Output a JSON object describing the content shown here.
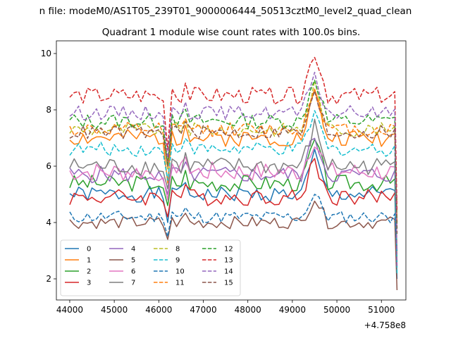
{
  "figure": {
    "suptitle": "n file: modeM0/AS1T05_239T01_9000006444_50513cztM0_level2_quad_clean"
  },
  "chart_data": {
    "type": "line",
    "title": "Quadrant 1 module wise count rates with 100.0s bins.",
    "xlabel": "",
    "ylabel": "",
    "x_offset_label": "+4.758e8",
    "xlim": [
      43700,
      51550
    ],
    "ylim": [
      1.25,
      10.45
    ],
    "x_ticks": [
      44000,
      45000,
      46000,
      47000,
      48000,
      49000,
      50000,
      51000
    ],
    "x_tick_labels": [
      "44000",
      "45000",
      "46000",
      "47000",
      "48000",
      "49000",
      "50000",
      "51000"
    ],
    "y_ticks": [
      2,
      4,
      6,
      8,
      10
    ],
    "y_tick_labels": [
      "2",
      "4",
      "6",
      "8",
      "10"
    ],
    "legend": {
      "placement": "lower-left",
      "columns": 4
    },
    "x": [
      44000,
      44100,
      44200,
      44300,
      44400,
      44500,
      44600,
      44700,
      44800,
      44900,
      45000,
      45100,
      45200,
      45300,
      45400,
      45500,
      45600,
      45700,
      45800,
      45900,
      46000,
      46100,
      46200,
      46300,
      46400,
      46500,
      46600,
      46700,
      46800,
      46900,
      47000,
      47100,
      47200,
      47300,
      47400,
      47500,
      47600,
      47700,
      47800,
      47900,
      48000,
      48100,
      48200,
      48300,
      48400,
      48500,
      48600,
      48700,
      48800,
      48900,
      49000,
      49100,
      49200,
      49300,
      49400,
      49500,
      49600,
      49700,
      49800,
      49900,
      50000,
      50100,
      50200,
      50300,
      50400,
      50500,
      50600,
      50700,
      50800,
      50900,
      51000,
      51100,
      51200,
      51300,
      51350
    ],
    "series": [
      {
        "name": "0",
        "color": "#1f77b4",
        "dash": "solid",
        "base": 5.0,
        "amp": 0.28,
        "seed": 1,
        "bump": 1.4,
        "dip": 4.0,
        "end": 2.0
      },
      {
        "name": "1",
        "color": "#ff7f0e",
        "dash": "solid",
        "base": 7.0,
        "amp": 0.3,
        "seed": 2,
        "bump": 1.6,
        "dip": 5.4,
        "end": 4.0
      },
      {
        "name": "2",
        "color": "#2ca02c",
        "dash": "solid",
        "base": 5.4,
        "amp": 0.3,
        "seed": 3,
        "bump": 1.5,
        "dip": 4.6,
        "end": 2.6
      },
      {
        "name": "3",
        "color": "#d62728",
        "dash": "solid",
        "base": 4.9,
        "amp": 0.3,
        "seed": 4,
        "bump": 1.4,
        "dip": 4.2,
        "end": 4.8
      },
      {
        "name": "4",
        "color": "#9467bd",
        "dash": "solid",
        "base": 5.7,
        "amp": 0.3,
        "seed": 5,
        "bump": 1.4,
        "dip": 5.0,
        "end": 3.0
      },
      {
        "name": "5",
        "color": "#8c564b",
        "dash": "solid",
        "base": 4.0,
        "amp": 0.22,
        "seed": 6,
        "bump": 0.9,
        "dip": 3.4,
        "end": 1.6
      },
      {
        "name": "6",
        "color": "#e377c2",
        "dash": "solid",
        "base": 5.8,
        "amp": 0.35,
        "seed": 7,
        "bump": 1.2,
        "dip": 4.8,
        "end": 3.8
      },
      {
        "name": "7",
        "color": "#7f7f7f",
        "dash": "solid",
        "base": 6.0,
        "amp": 0.32,
        "seed": 8,
        "bump": 1.4,
        "dip": 5.2,
        "end": 2.4
      },
      {
        "name": "8",
        "color": "#bcbd22",
        "dash": "dashed",
        "base": 7.3,
        "amp": 0.25,
        "seed": 9,
        "bump": 1.6,
        "dip": 5.9,
        "end": 2.8
      },
      {
        "name": "9",
        "color": "#17becf",
        "dash": "dashed",
        "base": 6.6,
        "amp": 0.25,
        "seed": 10,
        "bump": 1.3,
        "dip": 5.5,
        "end": 2.2
      },
      {
        "name": "10",
        "color": "#1f77b4",
        "dash": "dashed",
        "base": 4.2,
        "amp": 0.22,
        "seed": 11,
        "bump": 0.8,
        "dip": 3.5,
        "end": 3.0
      },
      {
        "name": "11",
        "color": "#ff7f0e",
        "dash": "dashed",
        "base": 7.3,
        "amp": 0.25,
        "seed": 12,
        "bump": 1.5,
        "dip": 6.2,
        "end": 4.0
      },
      {
        "name": "12",
        "color": "#2ca02c",
        "dash": "dashed",
        "base": 7.6,
        "amp": 0.28,
        "seed": 13,
        "bump": 1.6,
        "dip": 6.0,
        "end": 3.8
      },
      {
        "name": "13",
        "color": "#d62728",
        "dash": "dashed",
        "base": 8.5,
        "amp": 0.3,
        "seed": 14,
        "bump": 1.6,
        "dip": 6.6,
        "end": 4.4
      },
      {
        "name": "14",
        "color": "#9467bd",
        "dash": "dashed",
        "base": 7.9,
        "amp": 0.25,
        "seed": 15,
        "bump": 1.2,
        "dip": 6.3,
        "end": 2.4
      },
      {
        "name": "15",
        "color": "#8c564b",
        "dash": "dashed",
        "base": 7.2,
        "amp": 0.25,
        "seed": 16,
        "bump": 1.3,
        "dip": 6.0,
        "end": 3.6
      }
    ]
  }
}
